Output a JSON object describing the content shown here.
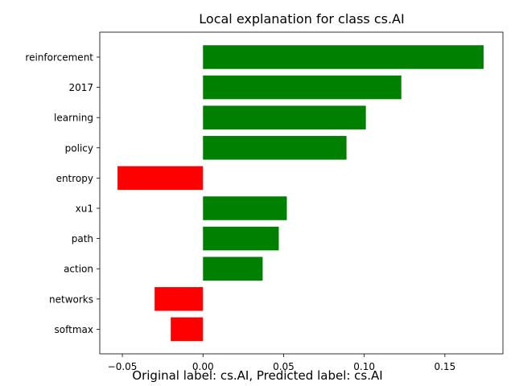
{
  "chart_data": {
    "type": "bar",
    "orientation": "horizontal",
    "title": "Local explanation for class cs.AI",
    "xlabel": "",
    "ylabel": "",
    "categories": [
      "reinforcement",
      "2017",
      "learning",
      "policy",
      "entropy",
      "xu1",
      "path",
      "action",
      "networks",
      "softmax"
    ],
    "values": [
      0.174,
      0.123,
      0.101,
      0.089,
      -0.053,
      0.052,
      0.047,
      0.037,
      -0.03,
      -0.02
    ],
    "xlim": [
      -0.064,
      0.186
    ],
    "xticks": [
      -0.05,
      0.0,
      0.05,
      0.1,
      0.15
    ],
    "xtick_labels": [
      "−0.05",
      "0.00",
      "0.05",
      "0.10",
      "0.15"
    ],
    "positive_color": "#008000",
    "negative_color": "#ff0000",
    "grid": false,
    "legend": "none"
  },
  "caption": "Original label: cs.AI, Predicted label: cs.AI"
}
